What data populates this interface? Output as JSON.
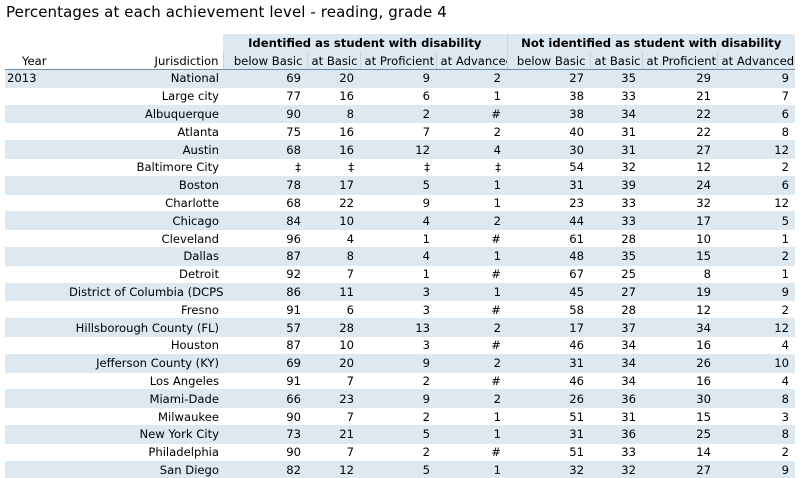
{
  "title": "Percentages at each achievement level - reading, grade 4",
  "header": {
    "group_disability": "Identified as student with disability",
    "group_no_disability": "Not identified as student with disability",
    "year": "Year",
    "jurisdiction": "Jurisdiction",
    "below_basic": "below Basic",
    "at_basic": "at Basic",
    "at_proficient": "at Proficient",
    "at_advanced": "at Advanced"
  },
  "chart_data": {
    "type": "table",
    "title": "Percentages at each achievement level - reading, grade 4",
    "groups": [
      "Identified as student with disability",
      "Not identified as student with disability"
    ],
    "columns": [
      "Year",
      "Jurisdiction",
      "below Basic",
      "at Basic",
      "at Proficient",
      "at Advanced",
      "below Basic",
      "at Basic",
      "at Proficient",
      "at Advanced"
    ],
    "rows": [
      {
        "year": "2013",
        "jurisdiction": "National",
        "values": [
          "69",
          "20",
          "9",
          "2",
          "27",
          "35",
          "29",
          "9"
        ]
      },
      {
        "year": "",
        "jurisdiction": "Large city",
        "values": [
          "77",
          "16",
          "6",
          "1",
          "38",
          "33",
          "21",
          "7"
        ]
      },
      {
        "year": "",
        "jurisdiction": "Albuquerque",
        "values": [
          "90",
          "8",
          "2",
          "#",
          "38",
          "34",
          "22",
          "6"
        ]
      },
      {
        "year": "",
        "jurisdiction": "Atlanta",
        "values": [
          "75",
          "16",
          "7",
          "2",
          "40",
          "31",
          "22",
          "8"
        ]
      },
      {
        "year": "",
        "jurisdiction": "Austin",
        "values": [
          "68",
          "16",
          "12",
          "4",
          "30",
          "31",
          "27",
          "12"
        ]
      },
      {
        "year": "",
        "jurisdiction": "Baltimore City",
        "values": [
          "‡",
          "‡",
          "‡",
          "‡",
          "54",
          "32",
          "12",
          "2"
        ]
      },
      {
        "year": "",
        "jurisdiction": "Boston",
        "values": [
          "78",
          "17",
          "5",
          "1",
          "31",
          "39",
          "24",
          "6"
        ]
      },
      {
        "year": "",
        "jurisdiction": "Charlotte",
        "values": [
          "68",
          "22",
          "9",
          "1",
          "23",
          "33",
          "32",
          "12"
        ]
      },
      {
        "year": "",
        "jurisdiction": "Chicago",
        "values": [
          "84",
          "10",
          "4",
          "2",
          "44",
          "33",
          "17",
          "5"
        ]
      },
      {
        "year": "",
        "jurisdiction": "Cleveland",
        "values": [
          "96",
          "4",
          "1",
          "#",
          "61",
          "28",
          "10",
          "1"
        ]
      },
      {
        "year": "",
        "jurisdiction": "Dallas",
        "values": [
          "87",
          "8",
          "4",
          "1",
          "48",
          "35",
          "15",
          "2"
        ]
      },
      {
        "year": "",
        "jurisdiction": "Detroit",
        "values": [
          "92",
          "7",
          "1",
          "#",
          "67",
          "25",
          "8",
          "1"
        ]
      },
      {
        "year": "",
        "jurisdiction": "District of Columbia (DCPS)",
        "values": [
          "86",
          "11",
          "3",
          "1",
          "45",
          "27",
          "19",
          "9"
        ]
      },
      {
        "year": "",
        "jurisdiction": "Fresno",
        "values": [
          "91",
          "6",
          "3",
          "#",
          "58",
          "28",
          "12",
          "2"
        ]
      },
      {
        "year": "",
        "jurisdiction": "Hillsborough County (FL)",
        "values": [
          "57",
          "28",
          "13",
          "2",
          "17",
          "37",
          "34",
          "12"
        ]
      },
      {
        "year": "",
        "jurisdiction": "Houston",
        "values": [
          "87",
          "10",
          "3",
          "#",
          "46",
          "34",
          "16",
          "4"
        ]
      },
      {
        "year": "",
        "jurisdiction": "Jefferson County (KY)",
        "values": [
          "69",
          "20",
          "9",
          "2",
          "31",
          "34",
          "26",
          "10"
        ]
      },
      {
        "year": "",
        "jurisdiction": "Los Angeles",
        "values": [
          "91",
          "7",
          "2",
          "#",
          "46",
          "34",
          "16",
          "4"
        ]
      },
      {
        "year": "",
        "jurisdiction": "Miami-Dade",
        "values": [
          "66",
          "23",
          "9",
          "2",
          "26",
          "36",
          "30",
          "8"
        ]
      },
      {
        "year": "",
        "jurisdiction": "Milwaukee",
        "values": [
          "90",
          "7",
          "2",
          "1",
          "51",
          "31",
          "15",
          "3"
        ]
      },
      {
        "year": "",
        "jurisdiction": "New York City",
        "values": [
          "73",
          "21",
          "5",
          "1",
          "31",
          "36",
          "25",
          "8"
        ]
      },
      {
        "year": "",
        "jurisdiction": "Philadelphia",
        "values": [
          "90",
          "7",
          "2",
          "#",
          "51",
          "33",
          "14",
          "2"
        ]
      },
      {
        "year": "",
        "jurisdiction": "San Diego",
        "values": [
          "82",
          "12",
          "5",
          "1",
          "32",
          "32",
          "27",
          "9"
        ]
      }
    ]
  }
}
